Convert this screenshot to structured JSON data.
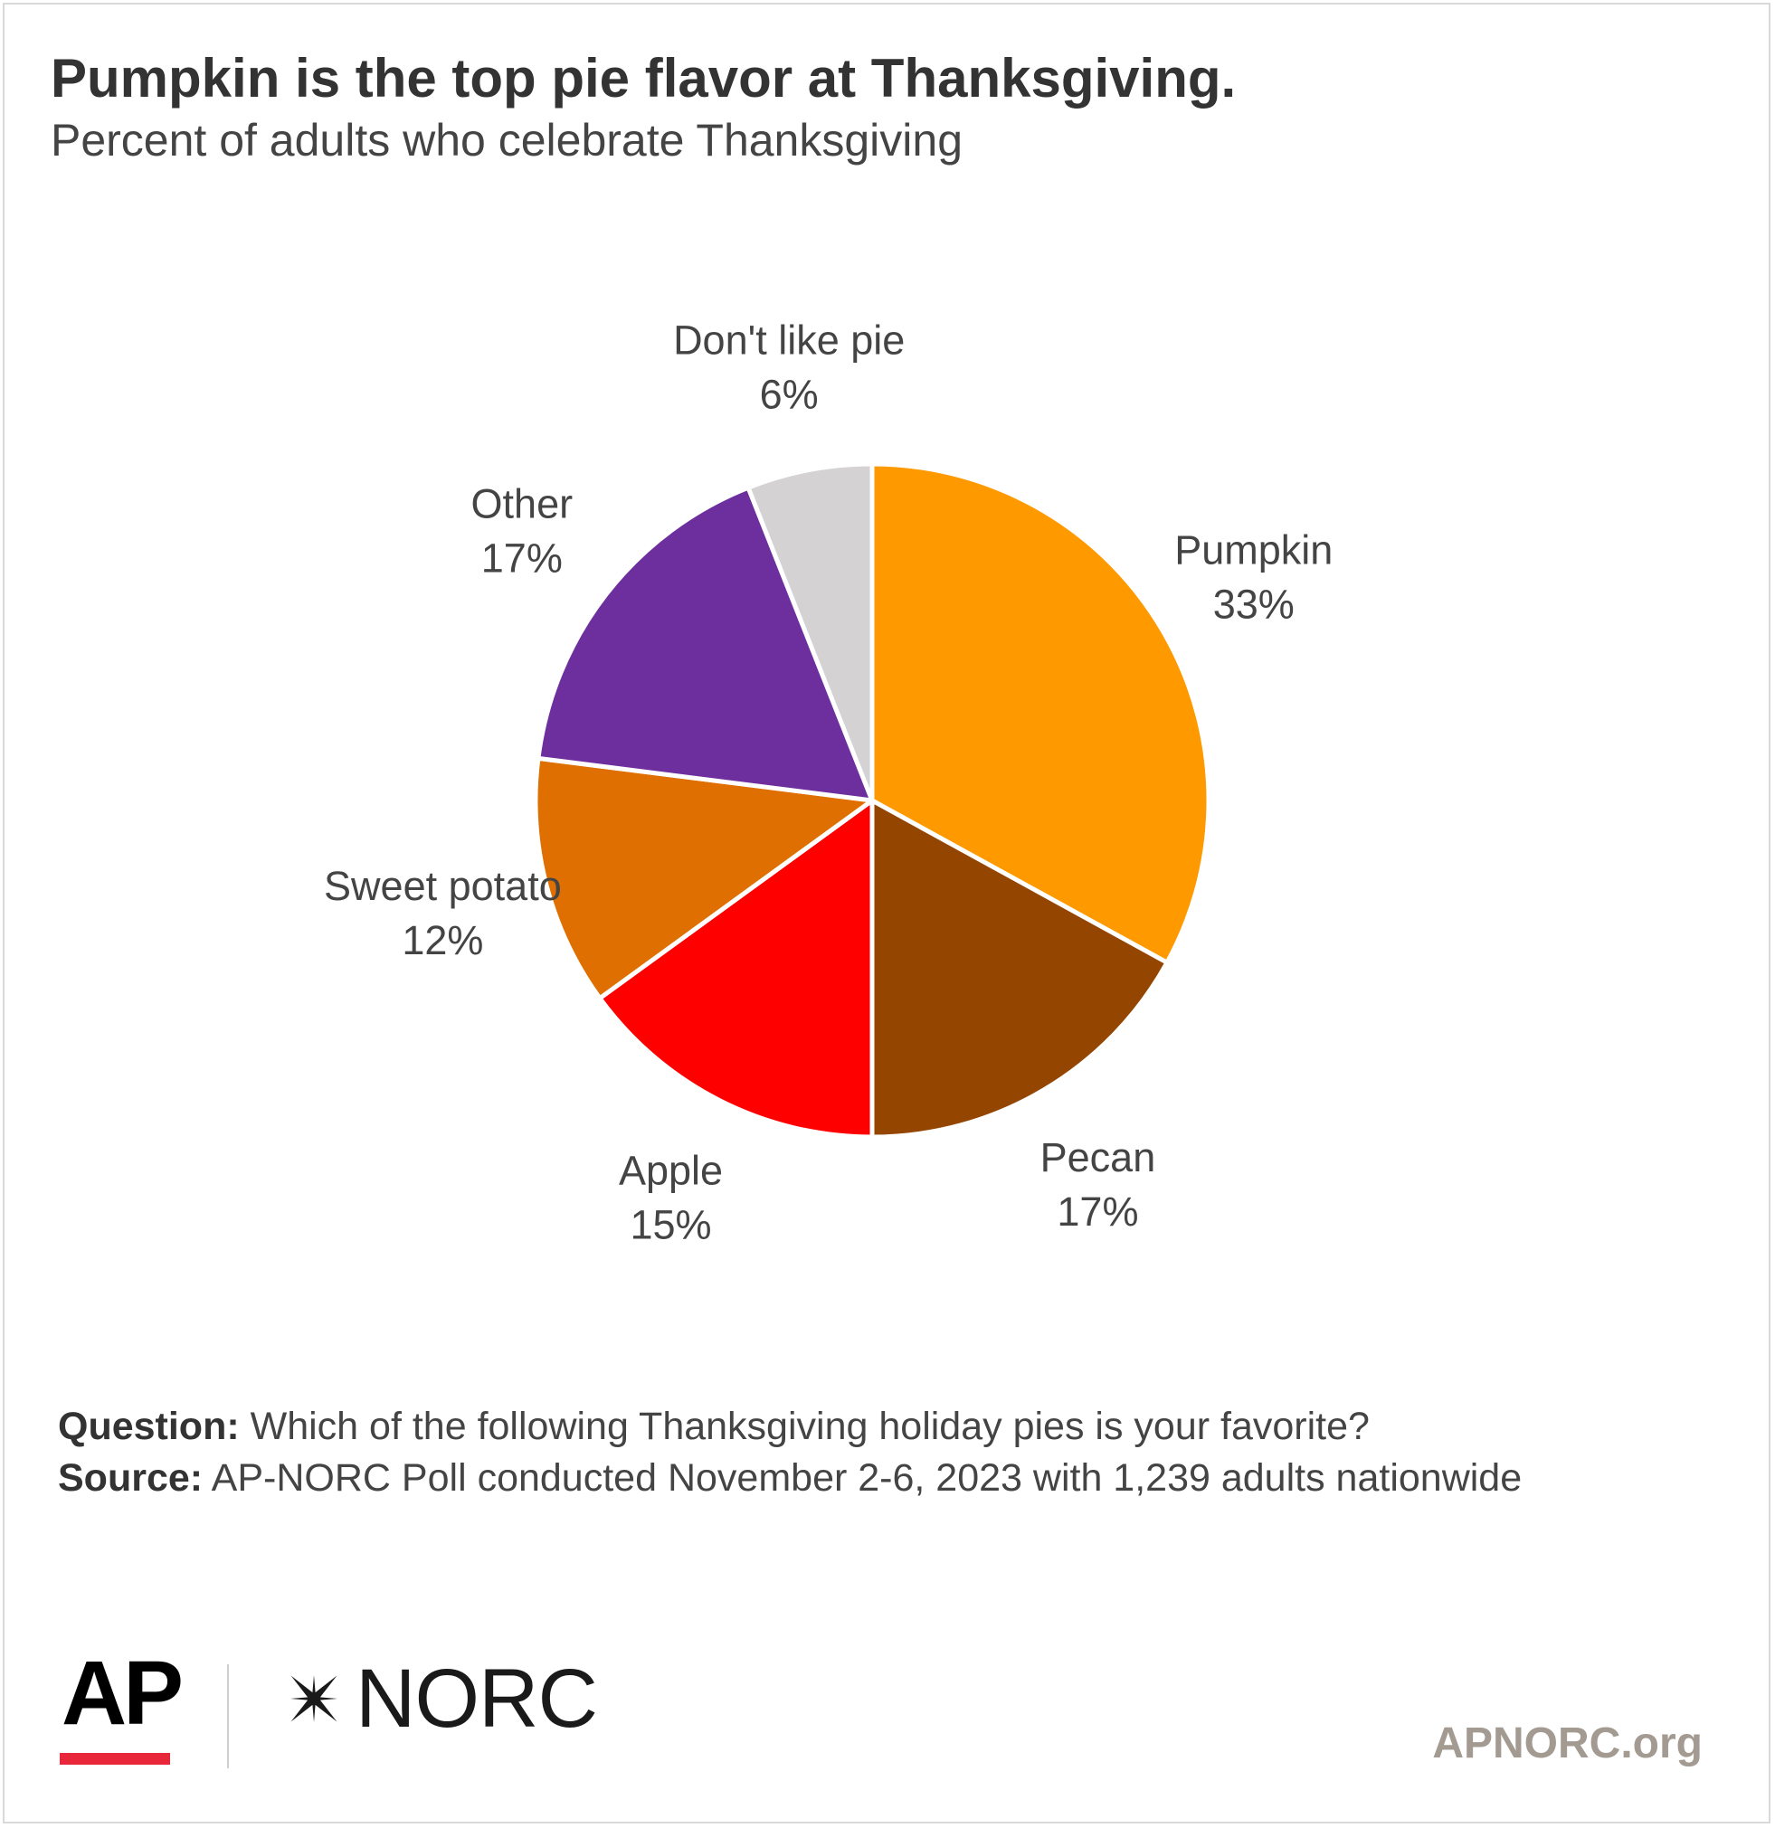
{
  "header": {
    "title": "Pumpkin is the top pie flavor at Thanksgiving.",
    "subtitle": "Percent of adults who celebrate Thanksgiving"
  },
  "chart_data": {
    "type": "pie",
    "title": "Pumpkin is the top pie flavor at Thanksgiving.",
    "subtitle": "Percent of adults who celebrate Thanksgiving",
    "unit": "%",
    "slices": [
      {
        "label": "Pumpkin",
        "value": 33,
        "value_label": "33%",
        "color": "#fe9900"
      },
      {
        "label": "Pecan",
        "value": 17,
        "value_label": "17%",
        "color": "#944500"
      },
      {
        "label": "Apple",
        "value": 15,
        "value_label": "15%",
        "color": "#ff0000"
      },
      {
        "label": "Sweet potato",
        "value": 12,
        "value_label": "12%",
        "color": "#df6f00"
      },
      {
        "label": "Other",
        "value": 17,
        "value_label": "17%",
        "color": "#6e2f9e"
      },
      {
        "label": "Don't like pie",
        "value": 6,
        "value_label": "6%",
        "color": "#d4d2d3"
      }
    ],
    "start": "top",
    "direction": "clockwise",
    "legend": "none"
  },
  "notes": {
    "question_label": "Question:",
    "question_text": " Which of the following Thanksgiving holiday pies is your favorite?",
    "source_label": "Source:",
    "source_text": " AP-NORC Poll conducted November 2-6, 2023 with 1,239  adults nationwide"
  },
  "footer": {
    "ap_logo": "AP",
    "norc_logo": "NORC",
    "url": "APNORC.org",
    "ap_accent_color": "#e8283a",
    "url_color": "#a39b92"
  }
}
